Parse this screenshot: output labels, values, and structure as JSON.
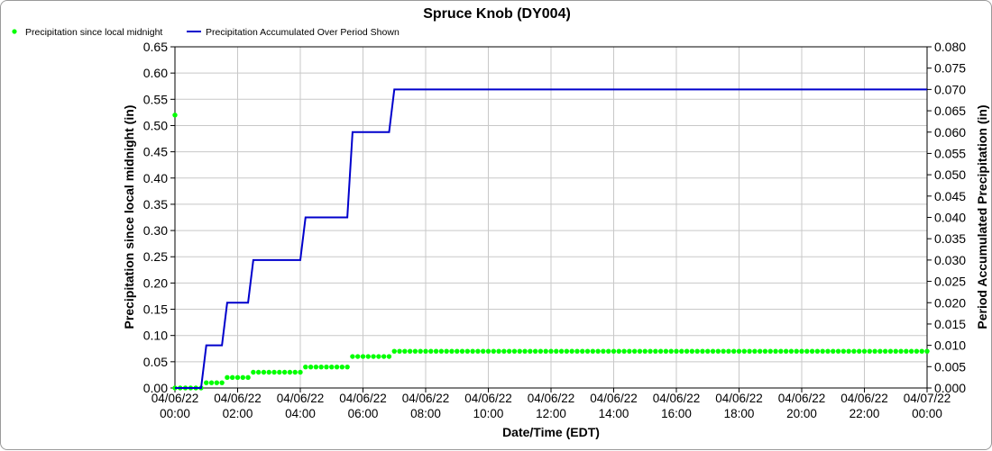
{
  "chart_data": {
    "type": "line",
    "title": "Spruce Knob (DY004)",
    "xlabel": "Date/Time (EDT)",
    "ylabel_left": "Precipitation since local midnight (in)",
    "ylabel_right": "Period Accumulated Precipitation (in)",
    "ylim_left": [
      0,
      0.65
    ],
    "ylim_right": [
      0,
      0.08
    ],
    "xlim": [
      "04/06/22 00:00",
      "04/07/22 00:00"
    ],
    "grid": true,
    "legend_position": "top-left",
    "left_ticks": [
      "0.00",
      "0.05",
      "0.10",
      "0.15",
      "0.20",
      "0.25",
      "0.30",
      "0.35",
      "0.40",
      "0.45",
      "0.50",
      "0.55",
      "0.60",
      "0.65"
    ],
    "right_ticks": [
      "0.000",
      "0.005",
      "0.010",
      "0.015",
      "0.020",
      "0.025",
      "0.030",
      "0.035",
      "0.040",
      "0.045",
      "0.050",
      "0.055",
      "0.060",
      "0.065",
      "0.070",
      "0.075",
      "0.080"
    ],
    "x_ticks": [
      {
        "date": "04/06/22",
        "time": "00:00"
      },
      {
        "date": "04/06/22",
        "time": "02:00"
      },
      {
        "date": "04/06/22",
        "time": "04:00"
      },
      {
        "date": "04/06/22",
        "time": "06:00"
      },
      {
        "date": "04/06/22",
        "time": "08:00"
      },
      {
        "date": "04/06/22",
        "time": "10:00"
      },
      {
        "date": "04/06/22",
        "time": "12:00"
      },
      {
        "date": "04/06/22",
        "time": "14:00"
      },
      {
        "date": "04/06/22",
        "time": "16:00"
      },
      {
        "date": "04/06/22",
        "time": "18:00"
      },
      {
        "date": "04/06/22",
        "time": "20:00"
      },
      {
        "date": "04/06/22",
        "time": "22:00"
      },
      {
        "date": "04/07/22",
        "time": "00:00"
      }
    ],
    "series": [
      {
        "name": "Precipitation since local midnight",
        "axis": "left",
        "style": "dots",
        "color": "#00ff00",
        "points": [
          {
            "x": "04/06/22 00:00",
            "y": 0.52
          }
        ],
        "steps": [
          {
            "start": "04/06/22 00:00",
            "end": "04/06/22 00:50",
            "value": 0.0
          },
          {
            "start": "04/06/22 01:00",
            "end": "04/06/22 01:30",
            "value": 0.01
          },
          {
            "start": "04/06/22 01:40",
            "end": "04/06/22 02:20",
            "value": 0.02
          },
          {
            "start": "04/06/22 02:30",
            "end": "04/06/22 04:00",
            "value": 0.03
          },
          {
            "start": "04/06/22 04:10",
            "end": "04/06/22 05:30",
            "value": 0.04
          },
          {
            "start": "04/06/22 05:40",
            "end": "04/06/22 06:50",
            "value": 0.06
          },
          {
            "start": "04/06/22 07:00",
            "end": "04/07/22 00:00",
            "value": 0.07
          }
        ]
      },
      {
        "name": "Precipitation Accumulated Over Period Shown",
        "axis": "right",
        "style": "step-line",
        "color": "#0000cc",
        "x": [
          "04/06/22 00:00",
          "04/06/22 00:50",
          "04/06/22 01:00",
          "04/06/22 01:30",
          "04/06/22 01:40",
          "04/06/22 02:20",
          "04/06/22 02:30",
          "04/06/22 04:00",
          "04/06/22 04:10",
          "04/06/22 05:30",
          "04/06/22 05:40",
          "04/06/22 06:50",
          "04/06/22 07:00",
          "04/07/22 00:00"
        ],
        "y": [
          0.0,
          0.0,
          0.01,
          0.01,
          0.02,
          0.02,
          0.03,
          0.03,
          0.04,
          0.04,
          0.06,
          0.06,
          0.07,
          0.07
        ]
      }
    ]
  }
}
